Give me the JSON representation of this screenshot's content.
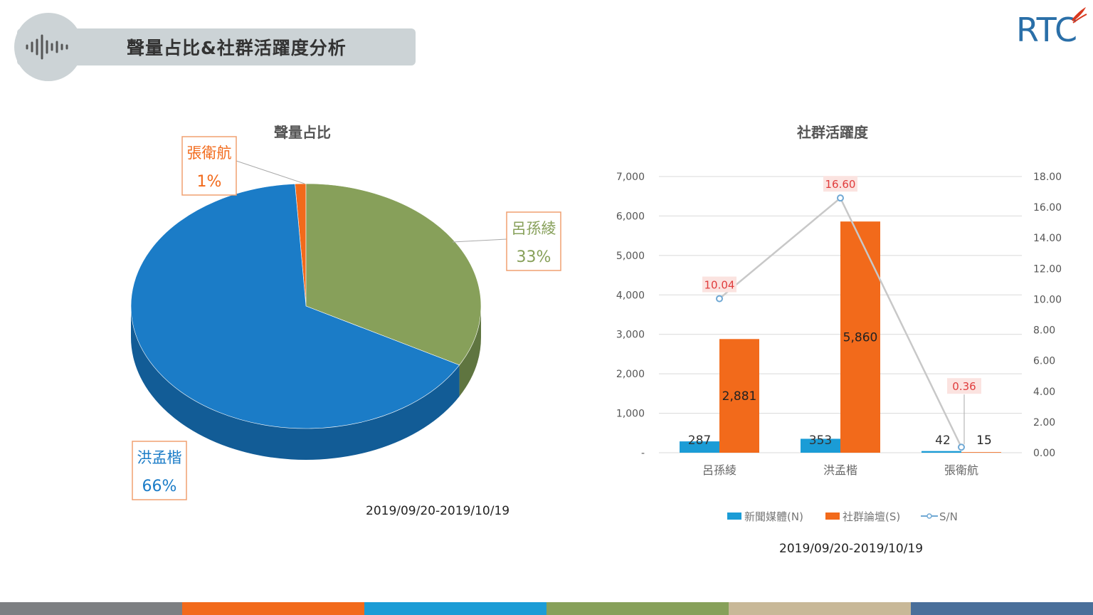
{
  "header": {
    "title": "聲量占比&社群活躍度分析"
  },
  "logo": {
    "text": "RTC"
  },
  "colors": {
    "hung": "#1b7cc7",
    "lu": "#87a05a",
    "chang": "#f26a1b",
    "news": "#1b9cd6",
    "social": "#f26a1b",
    "sn": "#6fa8d4",
    "sn_label": "#e03c3c"
  },
  "pie": {
    "title": "聲量占比",
    "date_range": "2019/09/20-2019/10/19",
    "chart_data": {
      "type": "pie",
      "title": "聲量占比",
      "slices": [
        {
          "name": "洪孟楷",
          "value": 66,
          "label": "66%"
        },
        {
          "name": "呂孫綾",
          "value": 33,
          "label": "33%"
        },
        {
          "name": "張衛航",
          "value": 1,
          "label": "1%"
        }
      ]
    }
  },
  "combo": {
    "title": "社群活躍度",
    "date_range": "2019/09/20-2019/10/19",
    "chart_data": {
      "type": "bar",
      "title": "社群活躍度",
      "categories": [
        "呂孫綾",
        "洪孟楷",
        "張衛航"
      ],
      "series": [
        {
          "name": "新聞媒體(N)",
          "values": [
            287,
            353,
            42
          ],
          "value_labels": [
            "287",
            "353",
            "42"
          ]
        },
        {
          "name": "社群論壇(S)",
          "values": [
            2881,
            5860,
            15
          ],
          "value_labels": [
            "2,881",
            "5,860",
            "15"
          ]
        },
        {
          "name": "S/N",
          "type": "line",
          "axis": "right",
          "values": [
            10.04,
            16.6,
            0.36
          ],
          "value_labels": [
            "10.04",
            "16.60",
            "0.36"
          ]
        }
      ],
      "y_left": {
        "ylim": [
          0,
          7000
        ],
        "ticks": [
          "-",
          "1,000",
          "2,000",
          "3,000",
          "4,000",
          "5,000",
          "6,000",
          "7,000"
        ]
      },
      "y_right": {
        "ylim": [
          0,
          18
        ],
        "ticks": [
          "0.00",
          "2.00",
          "4.00",
          "6.00",
          "8.00",
          "10.00",
          "12.00",
          "14.00",
          "16.00",
          "18.00"
        ]
      },
      "grid": true,
      "legend": "bottom"
    }
  }
}
